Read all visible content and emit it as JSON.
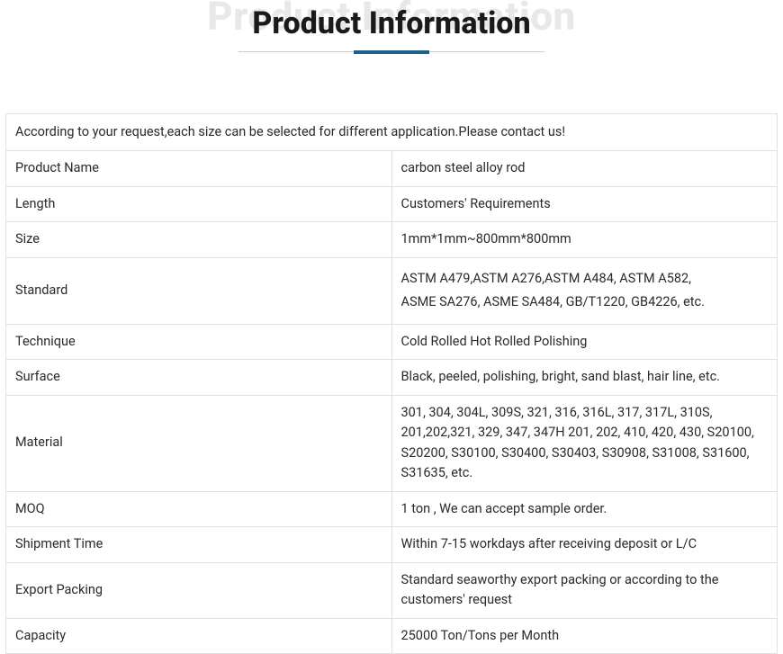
{
  "title": {
    "ghost": "Product Information",
    "main": "Product Information",
    "underline_color": "#1f5f8b",
    "underline_bg": "#cccccc"
  },
  "intro": "According to your request,each size can be selected for different application.Please contact us!",
  "rows": {
    "product_name": {
      "label": "Product Name",
      "value": "carbon steel alloy rod"
    },
    "length": {
      "label": "Length",
      "value": "Customers' Requirements"
    },
    "size": {
      "label": "Size",
      "value": "1mm*1mm~800mm*800mm"
    },
    "standard": {
      "label": "Standard",
      "line1": "ASTM A479,ASTM A276,ASTM A484, ASTM A582,",
      "line2": "ASME SA276, ASME SA484, GB/T1220, GB4226, etc."
    },
    "technique": {
      "label": "Technique",
      "value": "Cold Rolled Hot Rolled Polishing"
    },
    "surface": {
      "label": "Surface",
      "value": "Black, peeled, polishing, bright, sand blast, hair line, etc."
    },
    "material": {
      "label": "Material",
      "value": "301, 304, 304L, 309S, 321, 316, 316L, 317, 317L, 310S, 201,202,321, 329, 347, 347H 201, 202, 410, 420, 430, S20100, S20200, S30100, S30400, S30403, S30908, S31008, S31600, S31635, etc."
    },
    "moq": {
      "label": "MOQ",
      "value": "1 ton , We can accept sample order."
    },
    "shipment_time": {
      "label": "Shipment Time",
      "value": "Within 7-15 workdays after receiving deposit or L/C"
    },
    "export_packing": {
      "label": "Export Packing",
      "value": "Standard seaworthy export packing or according to the customers' request"
    },
    "capacity": {
      "label": "Capacity",
      "value": "25000 Ton/Tons per Month"
    }
  },
  "colors": {
    "border": "#e0e0e0",
    "text": "#2a2a2a",
    "ghost": "#e8e8e8",
    "background": "#ffffff"
  }
}
